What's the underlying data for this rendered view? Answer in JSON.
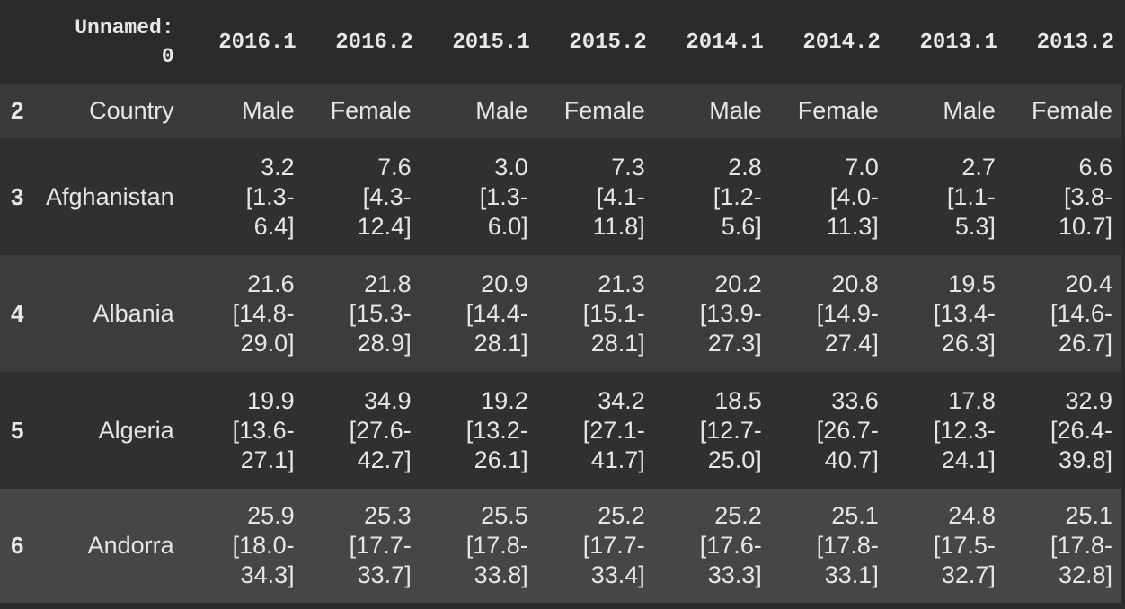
{
  "table": {
    "header": {
      "label_line1": "Unnamed:",
      "label_line2": "0",
      "columns": [
        "2016.1",
        "2016.2",
        "2015.1",
        "2015.2",
        "2014.1",
        "2014.2",
        "2013.1",
        "2013.2"
      ]
    },
    "rows": [
      {
        "index": "2",
        "label": "Country",
        "cells": [
          [
            "Male"
          ],
          [
            "Female"
          ],
          [
            "Male"
          ],
          [
            "Female"
          ],
          [
            "Male"
          ],
          [
            "Female"
          ],
          [
            "Male"
          ],
          [
            "Female"
          ]
        ]
      },
      {
        "index": "3",
        "label": "Afghanistan",
        "cells": [
          [
            "3.2",
            "[1.3-",
            "6.4]"
          ],
          [
            "7.6",
            "[4.3-",
            "12.4]"
          ],
          [
            "3.0",
            "[1.3-",
            "6.0]"
          ],
          [
            "7.3",
            "[4.1-",
            "11.8]"
          ],
          [
            "2.8",
            "[1.2-",
            "5.6]"
          ],
          [
            "7.0",
            "[4.0-",
            "11.3]"
          ],
          [
            "2.7",
            "[1.1-",
            "5.3]"
          ],
          [
            "6.6",
            "[3.8-",
            "10.7]"
          ]
        ]
      },
      {
        "index": "4",
        "label": "Albania",
        "cells": [
          [
            "21.6",
            "[14.8-",
            "29.0]"
          ],
          [
            "21.8",
            "[15.3-",
            "28.9]"
          ],
          [
            "20.9",
            "[14.4-",
            "28.1]"
          ],
          [
            "21.3",
            "[15.1-",
            "28.1]"
          ],
          [
            "20.2",
            "[13.9-",
            "27.3]"
          ],
          [
            "20.8",
            "[14.9-",
            "27.4]"
          ],
          [
            "19.5",
            "[13.4-",
            "26.3]"
          ],
          [
            "20.4",
            "[14.6-",
            "26.7]"
          ]
        ]
      },
      {
        "index": "5",
        "label": "Algeria",
        "cells": [
          [
            "19.9",
            "[13.6-",
            "27.1]"
          ],
          [
            "34.9",
            "[27.6-",
            "42.7]"
          ],
          [
            "19.2",
            "[13.2-",
            "26.1]"
          ],
          [
            "34.2",
            "[27.1-",
            "41.7]"
          ],
          [
            "18.5",
            "[12.7-",
            "25.0]"
          ],
          [
            "33.6",
            "[26.7-",
            "40.7]"
          ],
          [
            "17.8",
            "[12.3-",
            "24.1]"
          ],
          [
            "32.9",
            "[26.4-",
            "39.8]"
          ]
        ]
      },
      {
        "index": "6",
        "label": "Andorra",
        "cells": [
          [
            "25.9",
            "[18.0-",
            "34.3]"
          ],
          [
            "25.3",
            "[17.7-",
            "33.7]"
          ],
          [
            "25.5",
            "[17.8-",
            "33.8]"
          ],
          [
            "25.2",
            "[17.7-",
            "33.4]"
          ],
          [
            "25.2",
            "[17.6-",
            "33.3]"
          ],
          [
            "25.1",
            "[17.8-",
            "33.1]"
          ],
          [
            "24.8",
            "[17.5-",
            "32.7]"
          ],
          [
            "25.1",
            "[17.8-",
            "32.8]"
          ]
        ]
      }
    ]
  }
}
